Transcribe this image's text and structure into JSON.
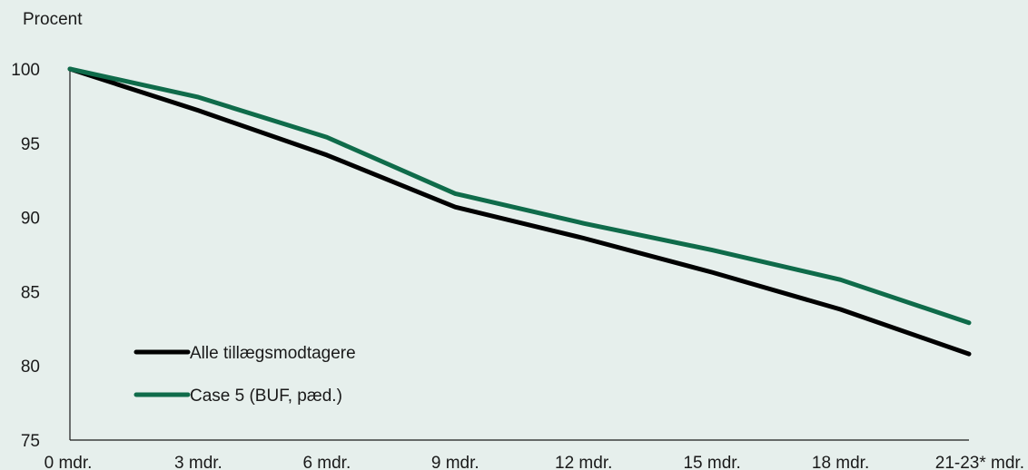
{
  "chart_data": {
    "type": "line",
    "title": "",
    "ylabel": "Procent",
    "xlabel": "",
    "categories": [
      "0 mdr.",
      "3 mdr.",
      "6 mdr.",
      "9 mdr.",
      "12 mdr.",
      "15 mdr.",
      "18 mdr.",
      "21-23* mdr."
    ],
    "ylim": [
      75,
      100
    ],
    "yticks": [
      75,
      80,
      85,
      90,
      95,
      100
    ],
    "grid": false,
    "legend_position": "bottom-left",
    "series": [
      {
        "name": "Alle tillægsmodtagere",
        "color": "#000000",
        "values": [
          100,
          97.2,
          94.2,
          90.7,
          88.6,
          86.3,
          83.8,
          80.8
        ]
      },
      {
        "name": "Case 5 (BUF, pæd.)",
        "color": "#0f6b4a",
        "values": [
          100,
          98.1,
          95.4,
          91.6,
          89.6,
          87.8,
          85.8,
          82.9
        ]
      }
    ]
  }
}
